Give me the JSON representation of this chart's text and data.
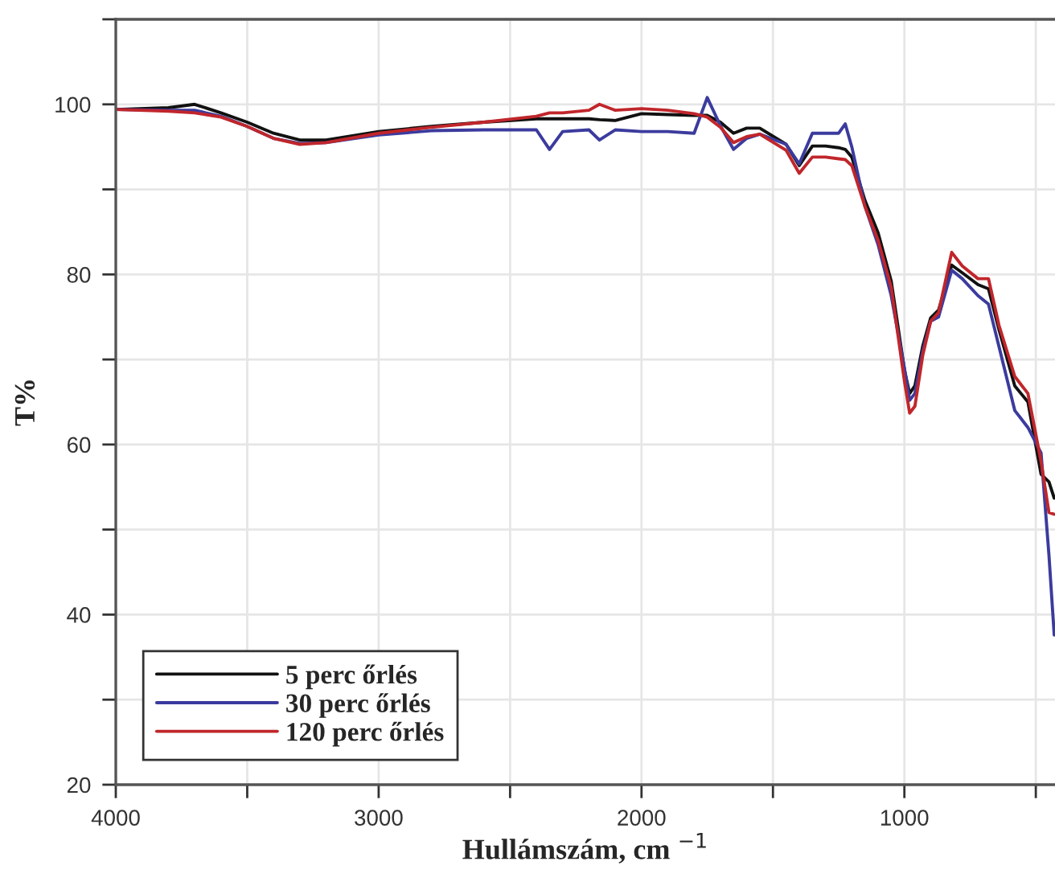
{
  "chart_data": {
    "type": "line",
    "xlabel": "Hullámszám, cm $^{−1}$",
    "ylabel": "T%",
    "x": [
      4000,
      3800,
      3700,
      3600,
      3500,
      3400,
      3300,
      3200,
      3000,
      2800,
      2600,
      2400,
      2350,
      2300,
      2200,
      2160,
      2100,
      2000,
      1900,
      1800,
      1750,
      1700,
      1650,
      1600,
      1550,
      1450,
      1400,
      1350,
      1300,
      1250,
      1225,
      1200,
      1150,
      1100,
      1050,
      1000,
      980,
      960,
      930,
      900,
      870,
      820,
      780,
      720,
      680,
      640,
      580,
      530,
      480,
      450,
      430
    ],
    "series": [
      {
        "name": "5 perc őrlés",
        "color": "#111111",
        "values": [
          99.4,
          99.6,
          100.0,
          99.0,
          97.9,
          96.6,
          95.8,
          95.8,
          96.8,
          97.4,
          97.9,
          98.3,
          98.3,
          98.3,
          98.3,
          98.2,
          98.1,
          98.9,
          98.8,
          98.7,
          98.7,
          97.9,
          96.6,
          97.2,
          97.2,
          95.3,
          92.8,
          95.1,
          95.1,
          94.9,
          94.7,
          93.8,
          88.7,
          84.9,
          79.2,
          68.8,
          66.0,
          66.9,
          71.6,
          74.9,
          75.8,
          81.1,
          80.2,
          78.8,
          78.3,
          73.5,
          66.9,
          65.0,
          56.5,
          55.6,
          53.7
        ]
      },
      {
        "name": "30 perc őrlés",
        "color": "#3b3b9e",
        "values": [
          99.4,
          99.3,
          99.3,
          98.6,
          97.4,
          96.0,
          95.4,
          95.5,
          96.4,
          96.9,
          97.0,
          97.0,
          94.7,
          96.8,
          97.0,
          95.8,
          97.0,
          96.8,
          96.8,
          96.6,
          100.8,
          97.5,
          94.7,
          96.0,
          96.5,
          95.3,
          93.0,
          96.6,
          96.6,
          96.6,
          97.7,
          95.0,
          88.0,
          83.5,
          77.5,
          69.0,
          65.2,
          66.0,
          71.0,
          74.5,
          75.0,
          80.5,
          79.5,
          77.5,
          76.5,
          71.5,
          64.0,
          62.0,
          59.0,
          47.0,
          37.6
        ]
      },
      {
        "name": "120 perc őrlés",
        "color": "#c0262b",
        "values": [
          99.4,
          99.2,
          99.0,
          98.5,
          97.4,
          96.0,
          95.3,
          95.5,
          96.6,
          97.3,
          97.9,
          98.6,
          99.0,
          99.0,
          99.3,
          100.0,
          99.3,
          99.5,
          99.3,
          98.9,
          98.5,
          97.3,
          95.5,
          96.2,
          96.5,
          94.6,
          91.9,
          93.8,
          93.8,
          93.6,
          93.5,
          92.8,
          88.0,
          84.0,
          78.5,
          67.5,
          63.7,
          64.5,
          70.5,
          74.5,
          75.5,
          82.6,
          81.0,
          79.5,
          79.5,
          74.0,
          68.0,
          66.0,
          58.0,
          52.0,
          51.8
        ]
      }
    ],
    "xlim": [
      4000,
      427
    ],
    "xticks": [
      4000,
      {
        "value": 3500,
        "label": null
      },
      3000,
      {
        "value": 2500,
        "label": null
      },
      2000,
      {
        "value": 1500,
        "label": null
      },
      1000,
      {
        "value": 500,
        "label": null
      }
    ],
    "ylim": [
      20,
      110
    ],
    "yticks": [
      20,
      {
        "value": 30,
        "label": null
      },
      40,
      {
        "value": 50,
        "label": null
      },
      60,
      {
        "value": 70,
        "label": null
      },
      80,
      {
        "value": 90,
        "label": null
      },
      100,
      {
        "value": 110,
        "label": null
      }
    ],
    "grid": true,
    "legend": "bottom left",
    "line_style": "solid",
    "marker": "none"
  }
}
